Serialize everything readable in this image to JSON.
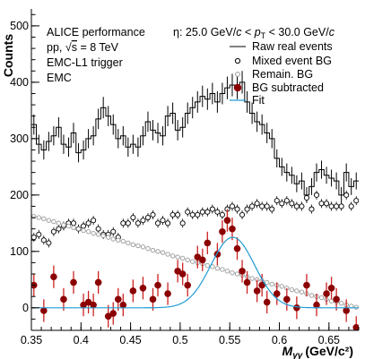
{
  "chart_data": {
    "type": "scatter",
    "xlabel": "M",
    "xlabel_sub": "γγ",
    "xlabel_unit": "(GeV/c²)",
    "ylabel": "Counts",
    "xlim": [
      0.35,
      0.68
    ],
    "ylim": [
      -40,
      530
    ],
    "x_ticks": [
      0.35,
      0.4,
      0.45,
      0.5,
      0.55,
      0.6,
      0.65
    ],
    "x_tick_labels": [
      "0.35",
      "0.4",
      "0.45",
      "0.5",
      "0.55",
      "0.6",
      "0.65"
    ],
    "y_ticks": [
      0,
      100,
      200,
      300,
      400,
      500
    ],
    "y_tick_labels": [
      "0",
      "100",
      "200",
      "300",
      "400",
      "500"
    ],
    "grid": false,
    "legend_position": "top-right",
    "annotations": {
      "line1": "ALICE performance",
      "line2_prefix": "pp, √",
      "line2_s": "s",
      "line2_suffix": " = 8 TeV",
      "line3": "EMC-L1 trigger",
      "line4": "EMC",
      "range_prefix": "η: 25.0 GeV/",
      "range_c1": "c",
      "range_mid": " < ",
      "range_p": "p",
      "range_sub": "T",
      "range_mid2": " < 30.0 GeV/",
      "range_c2": "c"
    },
    "series": [
      {
        "name": "Raw real events",
        "style": "histogram",
        "color": "#000000",
        "x": [
          0.3525,
          0.3575,
          0.3625,
          0.3675,
          0.3725,
          0.3775,
          0.3825,
          0.3875,
          0.3925,
          0.3975,
          0.4025,
          0.4075,
          0.4125,
          0.4175,
          0.4225,
          0.4275,
          0.4325,
          0.4375,
          0.4425,
          0.4475,
          0.4525,
          0.4575,
          0.4625,
          0.4675,
          0.4725,
          0.4775,
          0.4825,
          0.4875,
          0.4925,
          0.4975,
          0.5025,
          0.5075,
          0.5125,
          0.5175,
          0.5225,
          0.5275,
          0.5325,
          0.5375,
          0.5425,
          0.5475,
          0.5525,
          0.5575,
          0.5625,
          0.5675,
          0.5725,
          0.5775,
          0.5825,
          0.5875,
          0.5925,
          0.5975,
          0.6025,
          0.6075,
          0.6125,
          0.6175,
          0.6225,
          0.6275,
          0.6325,
          0.6375,
          0.6425,
          0.6475,
          0.6525,
          0.6575,
          0.6625,
          0.6675,
          0.6725,
          0.6775
        ],
        "y": [
          325,
          290,
          280,
          295,
          305,
          320,
          290,
          285,
          310,
          275,
          280,
          300,
          305,
          335,
          355,
          340,
          325,
          300,
          305,
          285,
          290,
          285,
          305,
          330,
          315,
          310,
          305,
          340,
          345,
          315,
          320,
          345,
          355,
          365,
          375,
          370,
          380,
          365,
          380,
          390,
          395,
          390,
          400,
          365,
          345,
          330,
          325,
          310,
          300,
          265,
          250,
          240,
          235,
          220,
          225,
          200,
          215,
          240,
          245,
          235,
          230,
          225,
          200,
          240,
          215,
          225
        ],
        "err": [
          18,
          17,
          17,
          17,
          17,
          18,
          17,
          17,
          18,
          17,
          17,
          17,
          17,
          18,
          19,
          18,
          18,
          17,
          17,
          17,
          17,
          17,
          17,
          18,
          18,
          18,
          17,
          18,
          19,
          18,
          18,
          19,
          19,
          19,
          19,
          19,
          19,
          19,
          19,
          20,
          20,
          20,
          20,
          19,
          19,
          18,
          18,
          18,
          17,
          16,
          16,
          16,
          15,
          15,
          15,
          14,
          15,
          16,
          16,
          15,
          15,
          15,
          14,
          16,
          15,
          15
        ]
      },
      {
        "name": "Mixed event BG",
        "style": "open-circle",
        "color": "#000000",
        "x": [
          0.3525,
          0.3575,
          0.3625,
          0.3675,
          0.3725,
          0.3775,
          0.3825,
          0.3875,
          0.3925,
          0.3975,
          0.4025,
          0.4075,
          0.4125,
          0.4175,
          0.4225,
          0.4275,
          0.4325,
          0.4375,
          0.4425,
          0.4475,
          0.4525,
          0.4575,
          0.4625,
          0.4675,
          0.4725,
          0.4775,
          0.4825,
          0.4875,
          0.4925,
          0.4975,
          0.5025,
          0.5075,
          0.5125,
          0.5175,
          0.5225,
          0.5275,
          0.5325,
          0.5375,
          0.5425,
          0.5475,
          0.5525,
          0.5575,
          0.5625,
          0.5675,
          0.5725,
          0.5775,
          0.5825,
          0.5875,
          0.5925,
          0.5975,
          0.6025,
          0.6075,
          0.6125,
          0.6175,
          0.6225,
          0.6275,
          0.6325,
          0.6375,
          0.6425,
          0.6475,
          0.6525,
          0.6575,
          0.6625,
          0.6675,
          0.6725,
          0.6775
        ],
        "y": [
          125,
          130,
          120,
          115,
          135,
          140,
          145,
          150,
          150,
          140,
          145,
          150,
          155,
          140,
          130,
          130,
          135,
          125,
          150,
          150,
          160,
          150,
          155,
          160,
          165,
          150,
          155,
          150,
          165,
          165,
          150,
          170,
          165,
          165,
          170,
          170,
          175,
          170,
          165,
          175,
          180,
          175,
          165,
          175,
          180,
          185,
          180,
          180,
          175,
          190,
          185,
          190,
          185,
          180,
          180,
          195,
          175,
          200,
          185,
          185,
          180,
          180,
          180,
          200,
          180,
          190
        ],
        "err": [
          8,
          8,
          8,
          8,
          8,
          8,
          8,
          8,
          8,
          8,
          8,
          8,
          8,
          8,
          8,
          8,
          8,
          8,
          8,
          8,
          8,
          8,
          8,
          8,
          8,
          8,
          8,
          8,
          8,
          8,
          8,
          8,
          8,
          8,
          8,
          8,
          8,
          8,
          8,
          8,
          8,
          8,
          8,
          8,
          8,
          8,
          8,
          8,
          8,
          8,
          8,
          8,
          8,
          8,
          8,
          8,
          8,
          8,
          8,
          8,
          8,
          8,
          8,
          8,
          8,
          8
        ]
      },
      {
        "name": "Remain. BG",
        "style": "open-circle-gray",
        "color": "#9a9a9a",
        "x": [
          0.3525,
          0.3575,
          0.3625,
          0.3675,
          0.3725,
          0.3775,
          0.3825,
          0.3875,
          0.3925,
          0.3975,
          0.4025,
          0.4075,
          0.4125,
          0.4175,
          0.4225,
          0.4275,
          0.4325,
          0.4375,
          0.4425,
          0.4475,
          0.4525,
          0.4575,
          0.4625,
          0.4675,
          0.4725,
          0.4775,
          0.4825,
          0.4875,
          0.4925,
          0.4975,
          0.5025,
          0.5075,
          0.5125,
          0.5175,
          0.5225,
          0.5275,
          0.5325,
          0.5375,
          0.5425,
          0.5475,
          0.5525,
          0.5575,
          0.5625,
          0.5675,
          0.5725,
          0.5775,
          0.5825,
          0.5875,
          0.5925,
          0.5975,
          0.6025,
          0.6075,
          0.6125,
          0.6175,
          0.6225,
          0.6275,
          0.6325,
          0.6375,
          0.6425,
          0.6475,
          0.6525,
          0.6575,
          0.6625,
          0.6675,
          0.6725,
          0.6775
        ],
        "y": [
          162,
          160,
          158,
          155,
          153,
          150,
          147,
          145,
          142,
          140,
          137,
          135,
          132,
          130,
          128,
          125,
          122,
          120,
          118,
          115,
          112,
          110,
          108,
          105,
          102,
          100,
          98,
          95,
          92,
          90,
          88,
          85,
          82,
          80,
          78,
          75,
          73,
          70,
          68,
          65,
          62,
          60,
          58,
          55,
          52,
          50,
          48,
          45,
          42,
          40,
          38,
          35,
          32,
          30,
          28,
          25,
          22,
          20,
          18,
          15,
          12,
          10,
          8,
          5,
          3,
          1
        ],
        "err": [
          4,
          4,
          4,
          4,
          4,
          4,
          4,
          4,
          4,
          4,
          4,
          4,
          4,
          4,
          4,
          4,
          4,
          4,
          4,
          4,
          4,
          4,
          4,
          4,
          4,
          4,
          4,
          4,
          4,
          4,
          4,
          4,
          4,
          4,
          4,
          4,
          4,
          4,
          4,
          4,
          4,
          4,
          4,
          4,
          4,
          4,
          4,
          4,
          4,
          4,
          4,
          4,
          4,
          4,
          4,
          4,
          4,
          4,
          4,
          4,
          4,
          4,
          4,
          4,
          4,
          4
        ]
      },
      {
        "name": "BG subtracted",
        "style": "filled-circle",
        "color": "#8b0000",
        "x": [
          0.3525,
          0.3625,
          0.3725,
          0.3825,
          0.3925,
          0.4025,
          0.4075,
          0.4125,
          0.4175,
          0.4275,
          0.4325,
          0.4375,
          0.4425,
          0.4525,
          0.4625,
          0.4725,
          0.4775,
          0.4875,
          0.4975,
          0.5025,
          0.5075,
          0.5175,
          0.5225,
          0.5275,
          0.5375,
          0.5425,
          0.5475,
          0.5525,
          0.5575,
          0.5625,
          0.5675,
          0.5775,
          0.5825,
          0.5875,
          0.5975,
          0.6075,
          0.6175,
          0.6275,
          0.6375,
          0.6475,
          0.6525,
          0.6575,
          0.6675,
          0.6775
        ],
        "y": [
          40,
          -5,
          55,
          15,
          45,
          5,
          10,
          5,
          45,
          -15,
          -10,
          15,
          5,
          30,
          35,
          15,
          40,
          25,
          65,
          60,
          40,
          90,
          85,
          115,
          95,
          135,
          155,
          140,
          105,
          65,
          45,
          30,
          40,
          10,
          25,
          15,
          0,
          40,
          5,
          25,
          35,
          15,
          -5,
          -35
        ],
        "err": [
          20,
          20,
          20,
          20,
          20,
          20,
          20,
          20,
          20,
          20,
          20,
          20,
          20,
          20,
          20,
          20,
          20,
          20,
          20,
          20,
          20,
          20,
          20,
          20,
          20,
          20,
          20,
          20,
          20,
          20,
          20,
          20,
          20,
          20,
          20,
          20,
          20,
          20,
          20,
          20,
          20,
          20,
          20,
          20
        ]
      },
      {
        "name": "Fit",
        "style": "line",
        "color": "#1f9bd6",
        "function": "gaussian",
        "amplitude": 125,
        "mean": 0.553,
        "sigma": 0.022,
        "offset": 0
      }
    ]
  }
}
